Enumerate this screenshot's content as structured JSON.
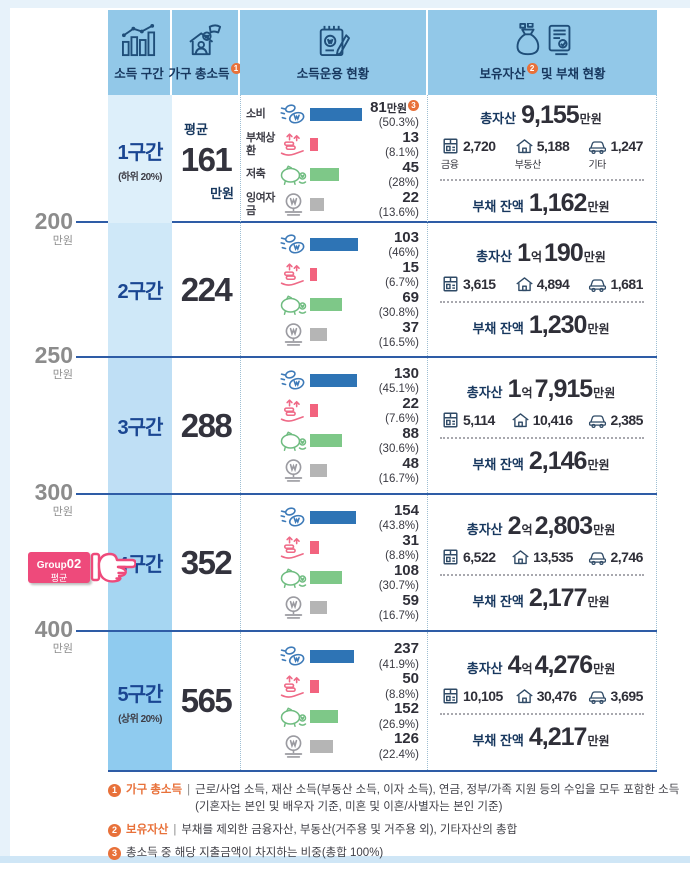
{
  "header": {
    "col1": "소득 구간",
    "col2": "가구 총소득",
    "col2_sup": "1",
    "col3": "소득운용 현황",
    "col4_pre": "보유자산",
    "col4_sup": "2",
    "col4_post": " 및 부채 현황"
  },
  "labels": {
    "total_assets": "총자산",
    "debt_balance": "부채 잔액",
    "man_won": "만원",
    "eok": "억"
  },
  "axis": [
    {
      "num": "200",
      "unit": "만원"
    },
    {
      "num": "250",
      "unit": "만원"
    },
    {
      "num": "300",
      "unit": "만원"
    },
    {
      "num": "400",
      "unit": "만원"
    }
  ],
  "badge": {
    "word": "Group",
    "num": "02",
    "subtitle": "평균"
  },
  "rows": [
    {
      "bracket": "1구간",
      "bracket_note": "(하위 20%)",
      "income_prefix": "평균",
      "income": "161",
      "income_unit": "만원",
      "usage": [
        {
          "label": "소비",
          "value": "81",
          "unit": "만원",
          "sup": "3",
          "pct": "(50.3%)",
          "pct_num": 50.3
        },
        {
          "label": "부채상환",
          "value": "13",
          "pct": "(8.1%)",
          "pct_num": 8.1
        },
        {
          "label": "저축",
          "value": "45",
          "pct": "(28%)",
          "pct_num": 28
        },
        {
          "label": "잉여자금",
          "value": "22",
          "pct": "(13.6%)",
          "pct_num": 13.6
        }
      ],
      "assets": {
        "man": "9,155",
        "finance": "2,720",
        "finance_label": "금융",
        "estate": "5,188",
        "estate_label": "부동산",
        "other": "1,247",
        "other_label": "기타",
        "debt": "1,162"
      }
    },
    {
      "bracket": "2구간",
      "income": "224",
      "usage": [
        {
          "value": "103",
          "pct": "(46%)",
          "pct_num": 46
        },
        {
          "value": "15",
          "pct": "(6.7%)",
          "pct_num": 6.7
        },
        {
          "value": "69",
          "pct": "(30.8%)",
          "pct_num": 30.8
        },
        {
          "value": "37",
          "pct": "(16.5%)",
          "pct_num": 16.5
        }
      ],
      "assets": {
        "eok": "1",
        "eok_unit": "억",
        "man": "190",
        "finance": "3,615",
        "estate": "4,894",
        "other": "1,681",
        "debt": "1,230"
      }
    },
    {
      "bracket": "3구간",
      "income": "288",
      "usage": [
        {
          "value": "130",
          "pct": "(45.1%)",
          "pct_num": 45.1
        },
        {
          "value": "22",
          "pct": "(7.6%)",
          "pct_num": 7.6
        },
        {
          "value": "88",
          "pct": "(30.6%)",
          "pct_num": 30.6
        },
        {
          "value": "48",
          "pct": "(16.7%)",
          "pct_num": 16.7
        }
      ],
      "assets": {
        "eok": "1",
        "eok_unit": "억",
        "man": "7,915",
        "finance": "5,114",
        "estate": "10,416",
        "other": "2,385",
        "debt": "2,146"
      }
    },
    {
      "bracket": "4구간",
      "income": "352",
      "usage": [
        {
          "value": "154",
          "pct": "(43.8%)",
          "pct_num": 43.8
        },
        {
          "value": "31",
          "pct": "(8.8%)",
          "pct_num": 8.8
        },
        {
          "value": "108",
          "pct": "(30.7%)",
          "pct_num": 30.7
        },
        {
          "value": "59",
          "pct": "(16.7%)",
          "pct_num": 16.7
        }
      ],
      "assets": {
        "eok": "2",
        "eok_unit": "억",
        "man": "2,803",
        "finance": "6,522",
        "estate": "13,535",
        "other": "2,746",
        "debt": "2,177"
      }
    },
    {
      "bracket": "5구간",
      "bracket_note": "(상위 20%)",
      "income": "565",
      "usage": [
        {
          "value": "237",
          "pct": "(41.9%)",
          "pct_num": 41.9
        },
        {
          "value": "50",
          "pct": "(8.8%)",
          "pct_num": 8.8
        },
        {
          "value": "152",
          "pct": "(26.9%)",
          "pct_num": 26.9
        },
        {
          "value": "126",
          "pct": "(22.4%)",
          "pct_num": 22.4
        }
      ],
      "assets": {
        "eok": "4",
        "eok_unit": "억",
        "man": "4,276",
        "finance": "10,105",
        "estate": "30,476",
        "other": "3,695",
        "debt": "4,217"
      }
    }
  ],
  "footnotes": [
    {
      "num": "1",
      "label": "가구 총소득",
      "sep": "|",
      "text": "근로/사업 소득, 재산 소득(부동산 소득, 이자 소득), 연금, 정부/가족 지원 등의 수입을 모두 포함한 소득",
      "text2": "(기혼자는 본인 및 배우자 기준, 미혼 및 이혼/사별자는 본인 기준)"
    },
    {
      "num": "2",
      "label": "보유자산",
      "sep": "|",
      "text": "부채를 제외한 금융자산, 부동산(거주용 및 거주용 외), 기타자산의 총합"
    },
    {
      "num": "3",
      "text": "총소득 중 해당 지출금액이 차지하는 비중(총합 100%)"
    }
  ],
  "icons": {
    "header": [
      "bar-chart-growth-icon",
      "hand-coin-household-icon",
      "notepad-pencil-icon",
      "money-bag-and-document-icon"
    ],
    "usage": [
      "spending-coins-icon",
      "debt-repayment-icon",
      "savings-piggy-icon",
      "surplus-money-icon"
    ],
    "assets": [
      "bankbook-icon",
      "house-icon",
      "car-icon"
    ],
    "pointer": "pointing-hand-icon"
  },
  "colors": {
    "header_bg": "#92c8e8",
    "row_separator": "#2e5ca6",
    "bracket_bgs": [
      "#ddeffa",
      "#cfe8f8",
      "#bfdff5",
      "#a6d6f2",
      "#8fcbef"
    ],
    "bar_consume": "#2e74b5",
    "bar_debt": "#f2637e",
    "bar_save": "#7ec888",
    "bar_surplus": "#b5b5b5",
    "accent_orange": "#e8713a",
    "badge_pink": "#ee4a7b",
    "navy_text": "#17375e"
  },
  "chart_data": {
    "type": "bar",
    "title": "소득 구간별 가구 총소득 · 소득운용 현황 · 보유자산 및 부채 현황",
    "categories": [
      "1구간 (하위 20%)",
      "2구간",
      "3구간",
      "4구간",
      "5구간 (상위 20%)"
    ],
    "income_boundaries_manwon": [
      200,
      250,
      300,
      400
    ],
    "series": [
      {
        "name": "가구 총소득(만원)",
        "values": [
          161,
          224,
          288,
          352,
          565
        ]
      },
      {
        "name": "소비(만원)",
        "values": [
          81,
          103,
          130,
          154,
          237
        ]
      },
      {
        "name": "소비(%)",
        "values": [
          50.3,
          46,
          45.1,
          43.8,
          41.9
        ]
      },
      {
        "name": "부채상환(만원)",
        "values": [
          13,
          15,
          22,
          31,
          50
        ]
      },
      {
        "name": "부채상환(%)",
        "values": [
          8.1,
          6.7,
          7.6,
          8.8,
          8.8
        ]
      },
      {
        "name": "저축(만원)",
        "values": [
          45,
          69,
          88,
          108,
          152
        ]
      },
      {
        "name": "저축(%)",
        "values": [
          28,
          30.8,
          30.6,
          30.7,
          26.9
        ]
      },
      {
        "name": "잉여자금(만원)",
        "values": [
          22,
          37,
          48,
          59,
          126
        ]
      },
      {
        "name": "잉여자금(%)",
        "values": [
          13.6,
          16.5,
          16.7,
          16.7,
          22.4
        ]
      },
      {
        "name": "총자산(만원)",
        "values": [
          9155,
          10190,
          17915,
          22803,
          44276
        ]
      },
      {
        "name": "금융자산(만원)",
        "values": [
          2720,
          3615,
          5114,
          6522,
          10105
        ]
      },
      {
        "name": "부동산(만원)",
        "values": [
          5188,
          4894,
          10416,
          13535,
          30476
        ]
      },
      {
        "name": "기타자산(만원)",
        "values": [
          1247,
          1681,
          2385,
          2746,
          3695
        ]
      },
      {
        "name": "부채 잔액(만원)",
        "values": [
          1162,
          1230,
          2146,
          2177,
          4217
        ]
      }
    ]
  }
}
